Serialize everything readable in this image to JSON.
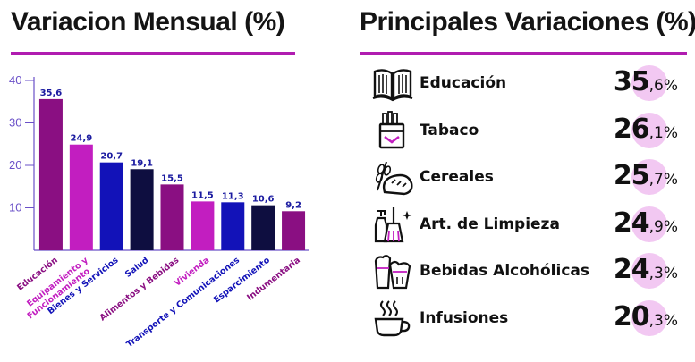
{
  "left_title": "Variacion Mensual (%)",
  "right_title": "Principales Variaciones (%)",
  "colors": {
    "accent": "#b01cb0",
    "axis": "#6a50c8",
    "value_label": "#1a1aa0"
  },
  "chart_data": {
    "type": "bar",
    "title": "Variacion Mensual (%)",
    "ylim": [
      0,
      40
    ],
    "yticks": [
      10,
      20,
      30,
      40
    ],
    "categories": [
      "Educación",
      "Equipamiento y Funcionamiento",
      "Bienes y Servicios",
      "Salud",
      "Alimentos y Bebidas",
      "Vivienda",
      "Transporte y Comunicaciones",
      "Esparcimiento",
      "Indumentaria"
    ],
    "category_label_lines": [
      [
        "Educación"
      ],
      [
        "Equipamiento y",
        "Funcionamiento"
      ],
      [
        "Bienes y Servicios"
      ],
      [
        "Salud"
      ],
      [
        "Alimentos y Bebidas"
      ],
      [
        "Vivienda"
      ],
      [
        "Transporte y Comunicaciones"
      ],
      [
        "Esparcimiento"
      ],
      [
        "Indumentaria"
      ]
    ],
    "values": [
      35.6,
      24.9,
      20.7,
      19.1,
      15.5,
      11.5,
      11.3,
      10.6,
      9.2
    ],
    "value_labels": [
      "35,6",
      "24,9",
      "20,7",
      "19,1",
      "15,5",
      "11,5",
      "11,3",
      "10,6",
      "9,2"
    ],
    "bar_colors": [
      "#8a0f82",
      "#c21ec0",
      "#1212b8",
      "#0e0e40",
      "#8a0f82",
      "#c21ec0",
      "#1212b8",
      "#0e0e40",
      "#8a0f82"
    ],
    "grid": false
  },
  "variations": [
    {
      "icon": "book-icon",
      "label": "Educación",
      "int": "35",
      "dec": ",6",
      "unit": "%"
    },
    {
      "icon": "cigarette-pack-icon",
      "label": "Tabaco",
      "int": "26",
      "dec": ",1",
      "unit": "%"
    },
    {
      "icon": "bread-wheat-icon",
      "label": "Cereales",
      "int": "25",
      "dec": ",7",
      "unit": "%"
    },
    {
      "icon": "cleaning-supplies-icon",
      "label": "Art. de Limpieza",
      "int": "24",
      "dec": ",9",
      "unit": "%"
    },
    {
      "icon": "beer-glasses-icon",
      "label": "Bebidas Alcohólicas",
      "int": "24",
      "dec": ",3",
      "unit": "%"
    },
    {
      "icon": "steaming-cup-icon",
      "label": "Infusiones",
      "int": "20",
      "dec": ",3",
      "unit": "%"
    }
  ]
}
